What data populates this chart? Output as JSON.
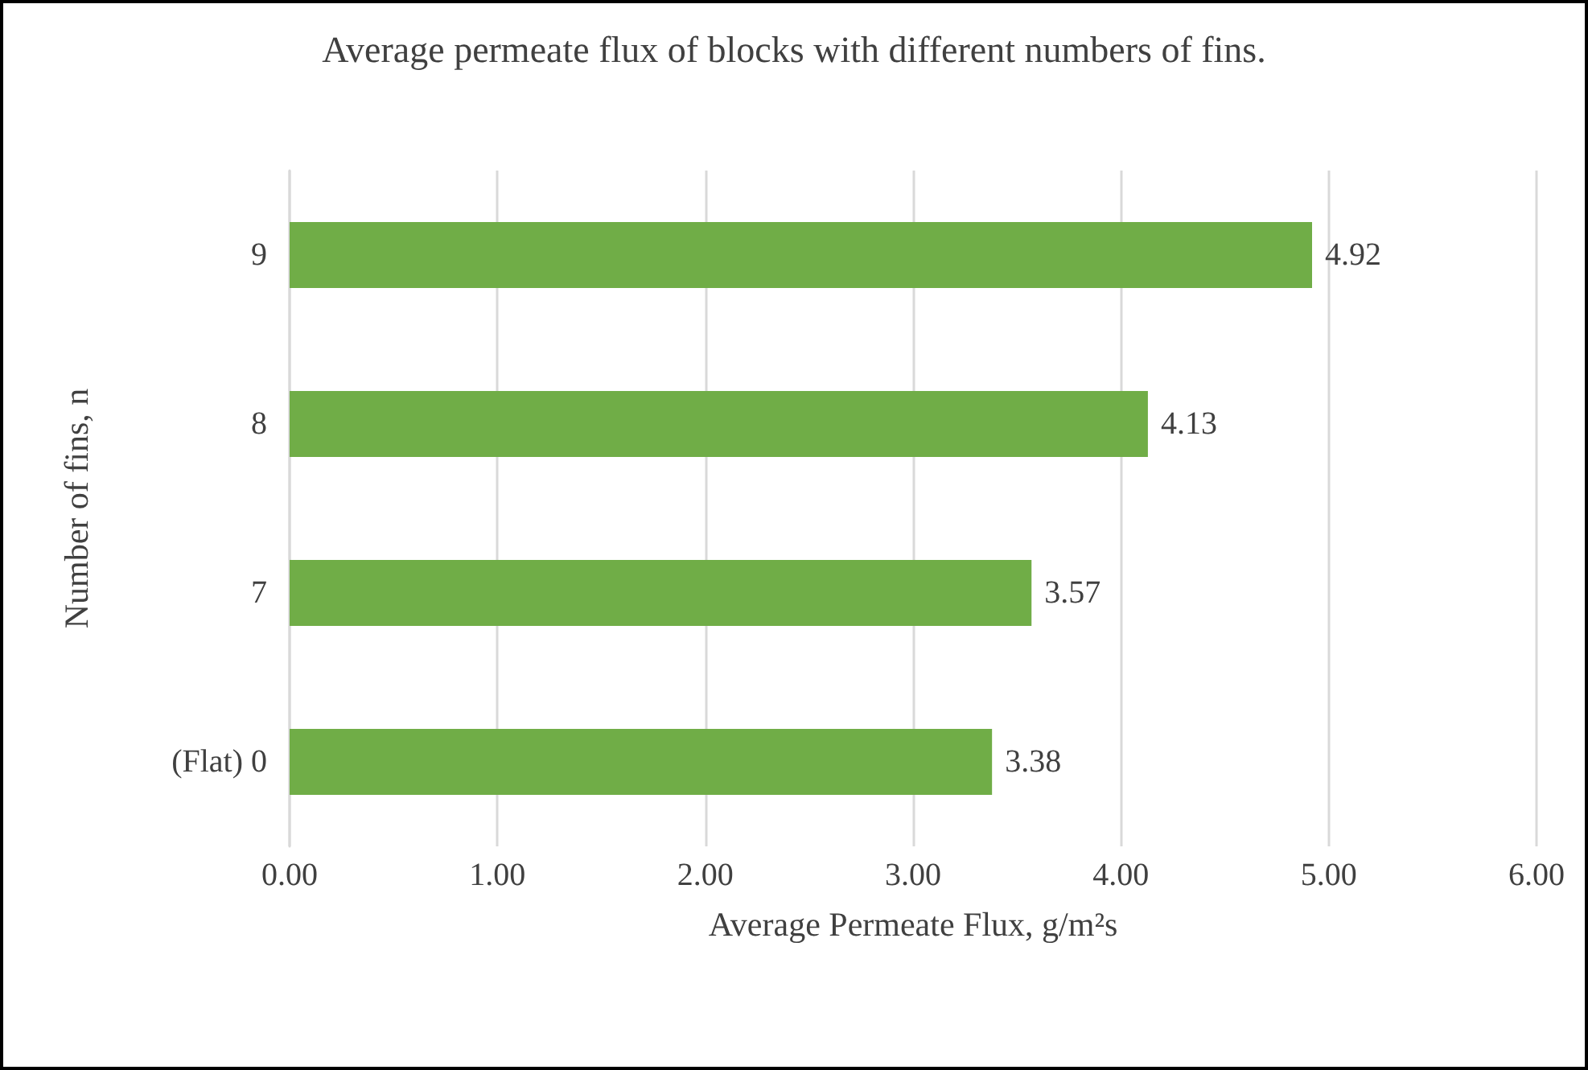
{
  "chart_data": {
    "type": "bar",
    "orientation": "horizontal",
    "title": "Average permeate flux of blocks with different numbers of fins.",
    "xlabel": "Average Permeate Flux, g/m²s",
    "ylabel": "Number of fins, n",
    "categories": [
      "9",
      "8",
      "7",
      "(Flat) 0"
    ],
    "values": [
      4.92,
      4.13,
      3.57,
      3.38
    ],
    "color": "#70ad47",
    "xlim": [
      0,
      6
    ],
    "xticks": [
      {
        "value": 0,
        "label": "0.00"
      },
      {
        "value": 1,
        "label": "1.00"
      },
      {
        "value": 2,
        "label": "2.00"
      },
      {
        "value": 3,
        "label": "3.00"
      },
      {
        "value": 4,
        "label": "4.00"
      },
      {
        "value": 5,
        "label": "5.00"
      },
      {
        "value": 6,
        "label": "6.00"
      }
    ],
    "grid": "x",
    "data_labels": true
  }
}
